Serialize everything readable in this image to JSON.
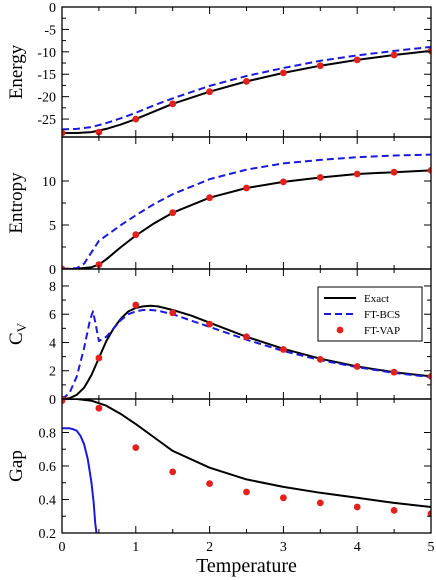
{
  "chart_data": [
    {
      "type": "line",
      "ylabel": "Energy",
      "ylim": [
        -29,
        0
      ],
      "yticks": [
        0,
        -5,
        -10,
        -15,
        -20,
        -25
      ],
      "series": [
        {
          "name": "Exact",
          "style": "solid",
          "color": "#000000",
          "x": [
            0,
            0.2,
            0.4,
            0.6,
            0.8,
            1.0,
            1.25,
            1.5,
            2.0,
            2.5,
            3.0,
            3.5,
            4.0,
            4.5,
            5.0
          ],
          "y": [
            -28.1,
            -28.1,
            -27.9,
            -27.2,
            -26.2,
            -25.0,
            -23.3,
            -21.6,
            -18.9,
            -16.6,
            -14.7,
            -13.1,
            -11.8,
            -10.7,
            -9.8
          ]
        },
        {
          "name": "FT-BCS",
          "style": "dashed",
          "color": "#1a1adc",
          "x": [
            0,
            0.2,
            0.4,
            0.6,
            0.8,
            1.0,
            1.25,
            1.5,
            2.0,
            2.5,
            3.0,
            3.5,
            4.0,
            4.5,
            5.0
          ],
          "y": [
            -27.3,
            -27.2,
            -26.8,
            -25.9,
            -24.8,
            -23.6,
            -21.9,
            -20.4,
            -17.6,
            -15.4,
            -13.6,
            -12.0,
            -10.8,
            -9.8,
            -8.9
          ]
        },
        {
          "name": "FT-VAP",
          "style": "markers",
          "color": "#e3201c",
          "x": [
            0,
            0.5,
            1.0,
            1.5,
            2.0,
            2.5,
            3.0,
            3.5,
            4.0,
            4.5,
            5.0
          ],
          "y": [
            -28.1,
            -27.9,
            -25.0,
            -21.6,
            -18.9,
            -16.6,
            -14.7,
            -13.1,
            -11.8,
            -10.7,
            -9.8
          ]
        }
      ]
    },
    {
      "type": "line",
      "ylabel": "Entropy",
      "ylim": [
        0,
        15
      ],
      "yticks": [
        0,
        5,
        10
      ],
      "series": [
        {
          "name": "Exact",
          "style": "solid",
          "color": "#000000",
          "x": [
            0,
            0.2,
            0.4,
            0.5,
            0.6,
            0.8,
            1.0,
            1.25,
            1.5,
            2.0,
            2.5,
            3.0,
            3.5,
            4.0,
            4.5,
            5.0
          ],
          "y": [
            0,
            0.02,
            0.2,
            0.5,
            1.1,
            2.5,
            3.8,
            5.2,
            6.4,
            8.1,
            9.2,
            9.9,
            10.4,
            10.8,
            11.0,
            11.2
          ]
        },
        {
          "name": "FT-BCS",
          "style": "dashed",
          "color": "#1a1adc",
          "x": [
            0,
            0.2,
            0.3,
            0.4,
            0.5,
            0.6,
            0.8,
            1.0,
            1.25,
            1.5,
            2.0,
            2.5,
            3.0,
            3.5,
            4.0,
            4.5,
            5.0
          ],
          "y": [
            0,
            0.1,
            0.6,
            1.9,
            3.2,
            3.8,
            5.0,
            6.1,
            7.4,
            8.5,
            10.2,
            11.3,
            12.0,
            12.4,
            12.7,
            12.9,
            13.0
          ]
        },
        {
          "name": "FT-VAP",
          "style": "markers",
          "color": "#e3201c",
          "x": [
            0,
            0.5,
            1.0,
            1.5,
            2.0,
            2.5,
            3.0,
            3.5,
            4.0,
            4.5,
            5.0
          ],
          "y": [
            0,
            0.5,
            3.9,
            6.4,
            8.1,
            9.2,
            9.9,
            10.4,
            10.8,
            11.0,
            11.2
          ]
        }
      ]
    },
    {
      "type": "line",
      "ylabel": "C",
      "ylabel_sub": "V",
      "ylim": [
        0,
        9.2
      ],
      "yticks": [
        0,
        2,
        4,
        6,
        8
      ],
      "legend": {
        "placement": "right",
        "entries": [
          "Exact",
          "FT-BCS",
          "FT-VAP"
        ]
      },
      "series": [
        {
          "name": "Exact",
          "style": "solid",
          "color": "#000000",
          "x": [
            0,
            0.1,
            0.2,
            0.3,
            0.4,
            0.5,
            0.6,
            0.7,
            0.8,
            0.9,
            1.0,
            1.1,
            1.2,
            1.3,
            1.5,
            1.75,
            2.0,
            2.5,
            3.0,
            3.5,
            4.0,
            4.5,
            5.0
          ],
          "y": [
            0,
            0.05,
            0.3,
            0.8,
            1.7,
            2.9,
            4.1,
            5.0,
            5.7,
            6.2,
            6.45,
            6.55,
            6.6,
            6.55,
            6.3,
            5.9,
            5.4,
            4.4,
            3.55,
            2.85,
            2.3,
            1.9,
            1.6
          ]
        },
        {
          "name": "FT-BCS",
          "style": "dashed",
          "color": "#1a1adc",
          "x": [
            0,
            0.1,
            0.2,
            0.3,
            0.38,
            0.42,
            0.46,
            0.5,
            0.6,
            0.7,
            0.8,
            0.9,
            1.0,
            1.1,
            1.2,
            1.3,
            1.5,
            1.75,
            2.0,
            2.5,
            3.0,
            3.5,
            4.0,
            4.5,
            5.0
          ],
          "y": [
            0,
            0.4,
            1.6,
            3.6,
            5.6,
            6.2,
            5.2,
            4.1,
            4.4,
            5.0,
            5.6,
            6.0,
            6.2,
            6.3,
            6.3,
            6.25,
            6.0,
            5.55,
            5.1,
            4.2,
            3.4,
            2.75,
            2.25,
            1.85,
            1.55
          ]
        },
        {
          "name": "FT-VAP",
          "style": "markers",
          "color": "#e3201c",
          "x": [
            0,
            0.5,
            1.0,
            1.5,
            2.0,
            2.5,
            3.0,
            3.5,
            4.0,
            4.5,
            5.0
          ],
          "y": [
            0,
            2.9,
            6.65,
            6.1,
            5.3,
            4.4,
            3.5,
            2.8,
            2.3,
            1.9,
            1.6
          ]
        }
      ]
    },
    {
      "type": "line",
      "ylabel": "Gap",
      "xlabel": "Temperature",
      "ylim": [
        0.2,
        1.0
      ],
      "xlim": [
        0,
        5
      ],
      "yticks": [
        0.2,
        0.4,
        0.6,
        0.8
      ],
      "xticks": [
        0,
        1,
        2,
        3,
        4,
        5
      ],
      "series": [
        {
          "name": "Exact",
          "style": "solid",
          "color": "#000000",
          "x": [
            0,
            0.2,
            0.4,
            0.6,
            0.8,
            1.0,
            1.25,
            1.5,
            2.0,
            2.5,
            3.0,
            3.5,
            4.0,
            4.5,
            5.0
          ],
          "y": [
            1.0,
            1.0,
            0.99,
            0.96,
            0.91,
            0.85,
            0.77,
            0.69,
            0.59,
            0.52,
            0.475,
            0.44,
            0.41,
            0.38,
            0.355
          ]
        },
        {
          "name": "FT-BCS",
          "style": "solid",
          "color": "#1a1adc",
          "x": [
            0,
            0.1,
            0.15,
            0.2,
            0.25,
            0.3,
            0.35,
            0.4,
            0.43,
            0.45,
            0.47
          ],
          "y": [
            0.825,
            0.825,
            0.82,
            0.81,
            0.78,
            0.73,
            0.64,
            0.5,
            0.38,
            0.26,
            0.19
          ]
        },
        {
          "name": "FT-VAP",
          "style": "markers",
          "color": "#e3201c",
          "x": [
            0,
            0.5,
            1.0,
            1.5,
            2.0,
            2.5,
            3.0,
            3.5,
            4.0,
            4.5,
            5.0
          ],
          "y": [
            0.99,
            0.945,
            0.71,
            0.565,
            0.495,
            0.445,
            0.41,
            0.38,
            0.355,
            0.335,
            0.315
          ]
        }
      ]
    }
  ]
}
